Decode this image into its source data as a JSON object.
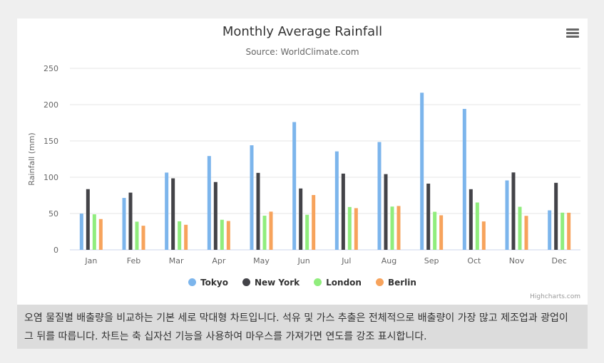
{
  "chart_data": {
    "type": "bar",
    "title": "Monthly Average Rainfall",
    "subtitle": "Source: WorldClimate.com",
    "ylabel": "Rainfall (mm)",
    "xlabel": "",
    "ylim": [
      0,
      250
    ],
    "yticks": [
      "0",
      "50",
      "100",
      "150",
      "200",
      "250"
    ],
    "grid": true,
    "legend_position": "bottom-center",
    "categories": [
      "Jan",
      "Feb",
      "Mar",
      "Apr",
      "May",
      "Jun",
      "Jul",
      "Aug",
      "Sep",
      "Oct",
      "Nov",
      "Dec"
    ],
    "series": [
      {
        "name": "Tokyo",
        "color": "#7cb5ec",
        "values": [
          49.9,
          71.5,
          106.4,
          129.2,
          144.0,
          176.0,
          135.6,
          148.5,
          216.4,
          194.1,
          95.6,
          54.4
        ]
      },
      {
        "name": "New York",
        "color": "#434348",
        "values": [
          83.6,
          78.8,
          98.5,
          93.4,
          106.0,
          84.5,
          105.0,
          104.3,
          91.2,
          83.5,
          106.6,
          92.3
        ]
      },
      {
        "name": "London",
        "color": "#90ed7d",
        "values": [
          48.9,
          38.8,
          39.3,
          41.4,
          47.0,
          48.3,
          59.0,
          59.6,
          52.4,
          65.2,
          59.3,
          51.2
        ]
      },
      {
        "name": "Berlin",
        "color": "#f7a35c",
        "values": [
          42.4,
          33.2,
          34.5,
          39.7,
          52.6,
          75.5,
          57.4,
          60.4,
          47.6,
          39.1,
          46.8,
          51.1
        ]
      }
    ]
  },
  "credits": "Highcharts.com",
  "caption": "오염 물질별 배출량을 비교하는 기본 세로 막대형 차트입니다. 석유 및 가스 추출은 전체적으로 배출량이 가장 많고 제조업과 광업이 그 뒤를 따릅니다. 차트는 축 십자선 기능을 사용하여 마우스를 가져가면 연도를 강조 표시합니다.",
  "icons": {
    "menu": "hamburger-menu-icon"
  }
}
